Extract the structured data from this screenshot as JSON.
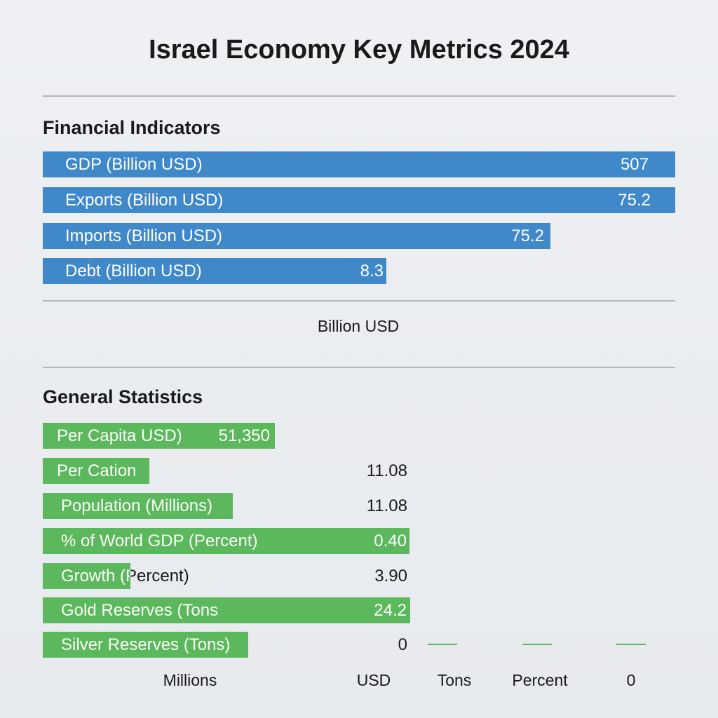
{
  "header": {
    "title": "Israel Economy Key Metrics 2024"
  },
  "financial": {
    "heading": "Financial Indicators",
    "unit": "Billion USD",
    "rows": [
      {
        "label": "GDP (Billion USD)",
        "value": "507"
      },
      {
        "label": "Exports (Billion USD)",
        "value": "75.2"
      },
      {
        "label": "Imports (Billion USD)",
        "value": "75.2"
      },
      {
        "label": "Debt (Billion USD)",
        "value": "8.3"
      }
    ]
  },
  "general": {
    "heading": "General Statistics",
    "rows": [
      {
        "label": "Per Capita USD)",
        "value": "51,350"
      },
      {
        "label": "Per Cation",
        "value": "11.08"
      },
      {
        "label": "Population (Millions)",
        "value": "11.08"
      },
      {
        "label": "% of World GDP (Percent)",
        "value": "0.40"
      },
      {
        "label": "Growth (Percent)",
        "value": "3.90"
      },
      {
        "label": "Gold Reserves (Tons",
        "value": "24.2"
      },
      {
        "label": "Silver Reserves (Tons)",
        "value": "0"
      }
    ],
    "footer_units": [
      "Millions",
      "USD",
      "Tons",
      "Percent",
      "0"
    ]
  }
}
